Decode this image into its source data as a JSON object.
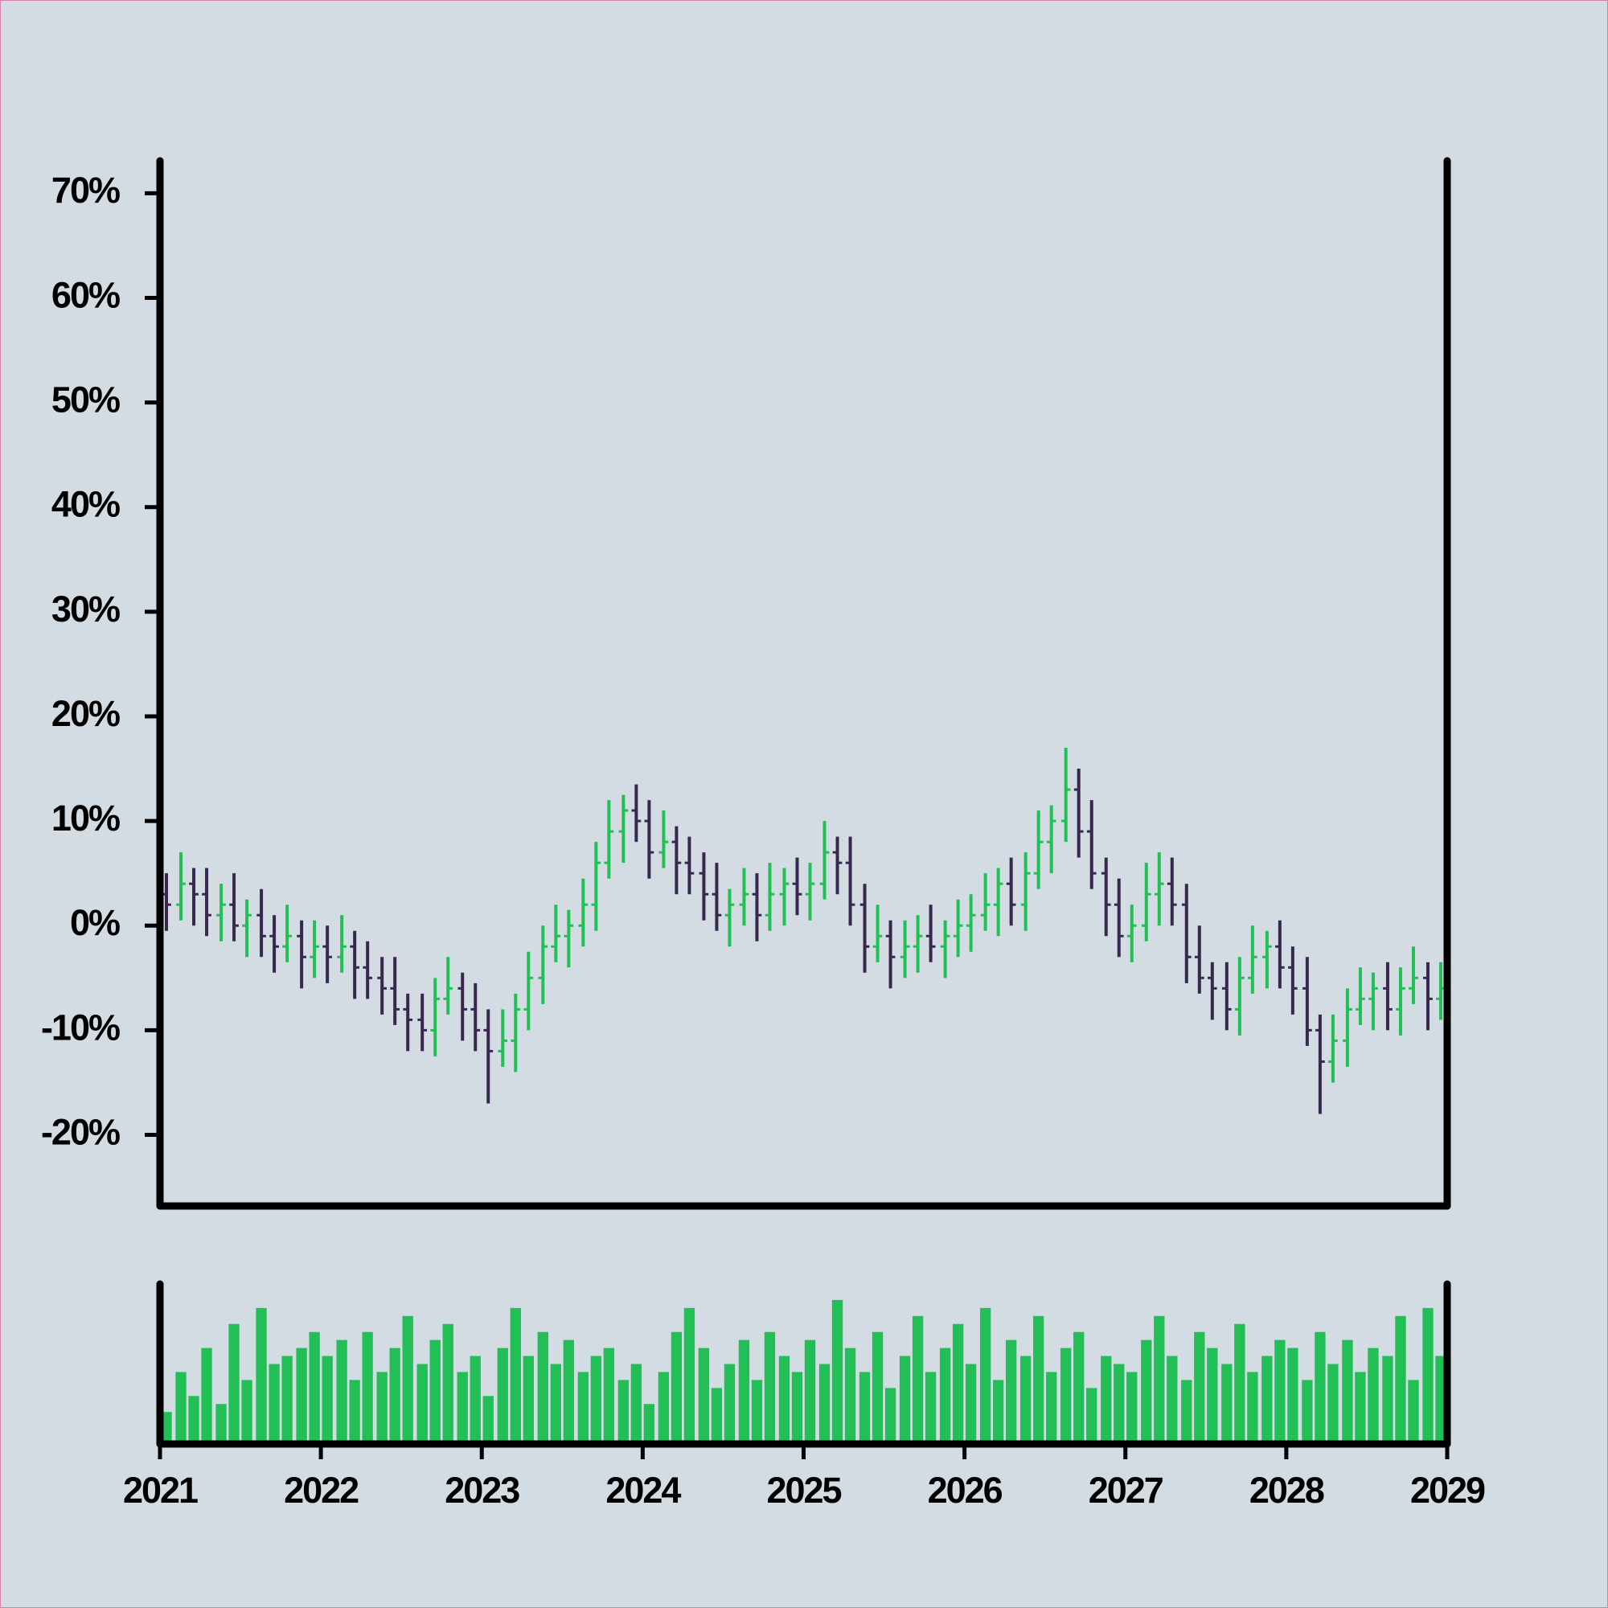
{
  "chart_data": {
    "type": "ohlc",
    "x": [
      2021.04,
      2021.13,
      2021.21,
      2021.29,
      2021.38,
      2021.46,
      2021.54,
      2021.63,
      2021.71,
      2021.79,
      2021.88,
      2021.96,
      2022.04,
      2022.13,
      2022.21,
      2022.29,
      2022.38,
      2022.46,
      2022.54,
      2022.63,
      2022.71,
      2022.79,
      2022.88,
      2022.96,
      2023.04,
      2023.13,
      2023.21,
      2023.29,
      2023.38,
      2023.46,
      2023.54,
      2023.63,
      2023.71,
      2023.79,
      2023.88,
      2023.96,
      2024.04,
      2024.13,
      2024.21,
      2024.29,
      2024.38,
      2024.46,
      2024.54,
      2024.63,
      2024.71,
      2024.79,
      2024.88,
      2024.96,
      2025.04,
      2025.13,
      2025.21,
      2025.29,
      2025.38,
      2025.46,
      2025.54,
      2025.63,
      2025.71,
      2025.79,
      2025.88,
      2025.96,
      2026.04,
      2026.13,
      2026.21,
      2026.29,
      2026.38,
      2026.46,
      2026.54,
      2026.63,
      2026.71,
      2026.79,
      2026.88,
      2026.96,
      2027.04,
      2027.13,
      2027.21,
      2027.29,
      2027.38,
      2027.46,
      2027.54,
      2027.63,
      2027.71,
      2027.79,
      2027.88,
      2027.96,
      2028.04,
      2028.13,
      2028.21,
      2028.29,
      2028.38,
      2028.46,
      2028.54,
      2028.63,
      2028.71,
      2028.79,
      2028.88,
      2028.96
    ],
    "open": [
      3,
      2,
      4,
      3,
      1,
      2,
      0,
      1,
      -1,
      -2,
      -1,
      -3,
      -2,
      -3,
      -2,
      -4,
      -5,
      -6,
      -8,
      -9,
      -10,
      -7,
      -6,
      -8,
      -10,
      -12,
      -11,
      -8,
      -5,
      -2,
      -1,
      0,
      2,
      6,
      9,
      11,
      10,
      7,
      8,
      6,
      5,
      3,
      1,
      2,
      3,
      1,
      3,
      4,
      3,
      4,
      7,
      6,
      2,
      -2,
      -1,
      -3,
      -2,
      -1,
      -2,
      -1,
      0,
      1,
      2,
      4,
      2,
      5,
      8,
      10,
      13,
      9,
      5,
      2,
      -1,
      0,
      3,
      4,
      2,
      -3,
      -5,
      -6,
      -8,
      -5,
      -3,
      -2,
      -4,
      -6,
      -10,
      -13,
      -11,
      -8,
      -7,
      -6,
      -8,
      -6,
      -5,
      -7
    ],
    "high": [
      5,
      7,
      5.5,
      5.5,
      4,
      5,
      2.5,
      3.5,
      1,
      2,
      0.5,
      0.5,
      0,
      1,
      -0.5,
      -1.5,
      -3,
      -3,
      -6.5,
      -6.5,
      -5,
      -3,
      -4.5,
      -5.5,
      -8,
      -8,
      -6.5,
      -2.5,
      0,
      2,
      1.5,
      4.5,
      8,
      12,
      12.5,
      13.5,
      12,
      11,
      9.5,
      8.5,
      7,
      6,
      3.5,
      5.5,
      5,
      6,
      5.5,
      6.5,
      6,
      10,
      8.5,
      8.5,
      4,
      2,
      0.5,
      0.5,
      1,
      2,
      0.5,
      2.5,
      3,
      5,
      5.5,
      6.5,
      7,
      11,
      11.5,
      17,
      15,
      12,
      6.5,
      4.5,
      2,
      6,
      7,
      6.5,
      4,
      0,
      -3.5,
      -3.5,
      -3,
      0,
      -0.5,
      0.5,
      -2,
      -3,
      -8.5,
      -8.5,
      -6,
      -4,
      -4.5,
      -3.5,
      -4,
      -2,
      -3.5,
      -3.5
    ],
    "low": [
      -0.5,
      0.5,
      0,
      -1,
      -1.5,
      -1.5,
      -3,
      -3,
      -4.5,
      -3.5,
      -6,
      -5,
      -5.5,
      -4.5,
      -7,
      -7,
      -8.5,
      -9.5,
      -12,
      -12,
      -12.5,
      -8.5,
      -11,
      -12,
      -17,
      -13.5,
      -14,
      -10,
      -7.5,
      -3.5,
      -4,
      -2,
      -0.5,
      4.5,
      6,
      8,
      4.5,
      5.5,
      3,
      3,
      0.5,
      -0.5,
      -2,
      0,
      -1.5,
      -0.5,
      0,
      1,
      0.5,
      2.5,
      3,
      0,
      -4.5,
      -3.5,
      -6,
      -5,
      -4.5,
      -3.5,
      -5,
      -3,
      -2.5,
      -0.5,
      -1,
      0,
      -0.5,
      3.5,
      5,
      8,
      6.5,
      3.5,
      -1,
      -3,
      -3.5,
      -1.5,
      0,
      0,
      -5.5,
      -6.5,
      -9,
      -10,
      -10.5,
      -6.5,
      -6,
      -6,
      -8.5,
      -11.5,
      -18,
      -15,
      -13.5,
      -9.5,
      -10,
      -10,
      -10.5,
      -7.5,
      -10,
      -9
    ],
    "close": [
      2,
      4,
      3,
      1,
      2,
      0,
      1,
      -1,
      -2,
      -1,
      -3,
      -2,
      -3,
      -2,
      -4,
      -5,
      -6,
      -8,
      -9,
      -10,
      -7,
      -6,
      -8,
      -10,
      -12,
      -11,
      -8,
      -5,
      -2,
      -1,
      0,
      2,
      6,
      9,
      11,
      10,
      7,
      8,
      6,
      5,
      3,
      1,
      2,
      3,
      1,
      3,
      4,
      3,
      4,
      7,
      6,
      2,
      -2,
      -1,
      -3,
      -2,
      -1,
      -2,
      -1,
      0,
      1,
      2,
      4,
      2,
      5,
      8,
      10,
      13,
      9,
      5,
      2,
      -1,
      0,
      3,
      4,
      2,
      -3,
      -5,
      -6,
      -8,
      -5,
      -3,
      -2,
      -4,
      -6,
      -10,
      -13,
      -11,
      -8,
      -7,
      -6,
      -8,
      -6,
      -5,
      -7,
      -6
    ],
    "volume": [
      20,
      45,
      30,
      60,
      25,
      75,
      40,
      85,
      50,
      55,
      60,
      70,
      55,
      65,
      40,
      70,
      45,
      60,
      80,
      50,
      65,
      75,
      45,
      55,
      30,
      60,
      85,
      55,
      70,
      50,
      65,
      45,
      55,
      60,
      40,
      50,
      25,
      45,
      70,
      85,
      60,
      35,
      50,
      65,
      40,
      70,
      55,
      45,
      65,
      50,
      90,
      60,
      45,
      70,
      35,
      55,
      80,
      45,
      60,
      75,
      50,
      85,
      40,
      65,
      55,
      80,
      45,
      60,
      70,
      35,
      55,
      50,
      45,
      65,
      80,
      55,
      40,
      70,
      60,
      50,
      75,
      45,
      55,
      65,
      60,
      40,
      70,
      50,
      65,
      45,
      60,
      55,
      80,
      40,
      85,
      55
    ],
    "up_color": "#22bf56",
    "down_color": "#38284f",
    "volume_color": "#22bf56",
    "xlim": [
      2021,
      2029
    ],
    "xticks": [
      2021,
      2022,
      2023,
      2024,
      2025,
      2026,
      2027,
      2028,
      2029
    ],
    "ylim": [
      -26.8,
      73.1
    ],
    "yticks": [
      {
        "value": -20,
        "label": "-20%"
      },
      {
        "value": -10,
        "label": "-10%"
      },
      {
        "value": 0,
        "label": "0%"
      },
      {
        "value": 10,
        "label": "10%"
      },
      {
        "value": 20,
        "label": "20%"
      },
      {
        "value": 30,
        "label": "30%"
      },
      {
        "value": 40,
        "label": "40%"
      },
      {
        "value": 50,
        "label": "50%"
      },
      {
        "value": 60,
        "label": "60%"
      },
      {
        "value": 70,
        "label": "70%"
      }
    ],
    "volume_ylim": [
      0,
      100
    ]
  }
}
